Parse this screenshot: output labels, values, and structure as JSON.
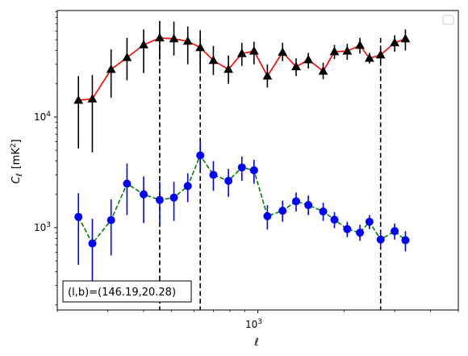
{
  "chart_data": {
    "type": "scatter",
    "xlabel_base": "ℓ",
    "ylabel_base": "C",
    "ylabel_sub": "ℓ",
    "ylabel_unit": "[mK",
    "ylabel_unit_sup": "2",
    "ylabel_unit_end": "]",
    "x_scale": "log",
    "y_scale": "log",
    "xlim": [
      200,
      5000
    ],
    "ylim": [
      180,
      92000
    ],
    "x_major_ticks": [
      {
        "value": 1000,
        "base": "10",
        "exp": "3"
      }
    ],
    "y_major_ticks": [
      {
        "value": 1000,
        "base": "10",
        "exp": "3"
      },
      {
        "value": 10000,
        "base": "10",
        "exp": "4"
      }
    ],
    "legend": "top-right",
    "grid": false,
    "annotation": "(l,b)=(146.19,20.28)",
    "vlines": [
      455,
      630,
      2680
    ],
    "series": [
      {
        "marker": "triangle",
        "marker_color": "#000000",
        "line_color": "#ff0000",
        "line_style": "solid",
        "errorbar_color": "#000000",
        "points": [
          {
            "x": 237,
            "y": 14200,
            "lo": 5200,
            "hi": 23500
          },
          {
            "x": 265,
            "y": 14600,
            "lo": 4800,
            "hi": 24000
          },
          {
            "x": 308,
            "y": 27000,
            "lo": 15000,
            "hi": 41000
          },
          {
            "x": 350,
            "y": 34500,
            "lo": 21500,
            "hi": 52000
          },
          {
            "x": 400,
            "y": 45000,
            "lo": 25000,
            "hi": 62000
          },
          {
            "x": 455,
            "y": 52000,
            "lo": 33000,
            "hi": 74000
          },
          {
            "x": 510,
            "y": 51000,
            "lo": 36000,
            "hi": 73000
          },
          {
            "x": 570,
            "y": 48500,
            "lo": 30000,
            "hi": 66000
          },
          {
            "x": 630,
            "y": 42500,
            "lo": 27000,
            "hi": 61000
          },
          {
            "x": 700,
            "y": 32500,
            "lo": 24000,
            "hi": 44000
          },
          {
            "x": 790,
            "y": 27000,
            "lo": 20000,
            "hi": 36000
          },
          {
            "x": 880,
            "y": 37500,
            "lo": 29000,
            "hi": 47000
          },
          {
            "x": 970,
            "y": 39500,
            "lo": 30000,
            "hi": 48000
          },
          {
            "x": 1080,
            "y": 23500,
            "lo": 18500,
            "hi": 30000
          },
          {
            "x": 1220,
            "y": 38500,
            "lo": 32000,
            "hi": 47000
          },
          {
            "x": 1360,
            "y": 28500,
            "lo": 23500,
            "hi": 34000
          },
          {
            "x": 1500,
            "y": 33000,
            "lo": 27500,
            "hi": 38000
          },
          {
            "x": 1690,
            "y": 26000,
            "lo": 22000,
            "hi": 31000
          },
          {
            "x": 1850,
            "y": 39000,
            "lo": 33500,
            "hi": 45000
          },
          {
            "x": 2050,
            "y": 39500,
            "lo": 33000,
            "hi": 46000
          },
          {
            "x": 2270,
            "y": 44500,
            "lo": 37500,
            "hi": 52000
          },
          {
            "x": 2450,
            "y": 34000,
            "lo": 30500,
            "hi": 38000
          },
          {
            "x": 2680,
            "y": 36500,
            "lo": 30500,
            "hi": 42000
          },
          {
            "x": 3000,
            "y": 47000,
            "lo": 39000,
            "hi": 55000
          },
          {
            "x": 3270,
            "y": 51000,
            "lo": 40000,
            "hi": 62000
          }
        ]
      },
      {
        "marker": "circle",
        "marker_color": "#0000ff",
        "line_color": "#008000",
        "line_style": "dashed",
        "errorbar_color": "#0000ff",
        "points": [
          {
            "x": 237,
            "y": 1250,
            "lo": 460,
            "hi": 2050
          },
          {
            "x": 265,
            "y": 720,
            "lo": 240,
            "hi": 1200
          },
          {
            "x": 308,
            "y": 1170,
            "lo": 560,
            "hi": 1800
          },
          {
            "x": 350,
            "y": 2500,
            "lo": 1300,
            "hi": 3800
          },
          {
            "x": 400,
            "y": 2000,
            "lo": 1100,
            "hi": 2900
          },
          {
            "x": 455,
            "y": 1780,
            "lo": 1050,
            "hi": 2600
          },
          {
            "x": 510,
            "y": 1870,
            "lo": 1150,
            "hi": 2600
          },
          {
            "x": 570,
            "y": 2380,
            "lo": 1700,
            "hi": 3100
          },
          {
            "x": 630,
            "y": 4500,
            "lo": 3300,
            "hi": 6100
          },
          {
            "x": 700,
            "y": 3000,
            "lo": 2150,
            "hi": 4000
          },
          {
            "x": 790,
            "y": 2650,
            "lo": 1900,
            "hi": 3400
          },
          {
            "x": 880,
            "y": 3500,
            "lo": 2650,
            "hi": 4400
          },
          {
            "x": 970,
            "y": 3300,
            "lo": 2500,
            "hi": 4100
          },
          {
            "x": 1080,
            "y": 1270,
            "lo": 960,
            "hi": 1600
          },
          {
            "x": 1220,
            "y": 1420,
            "lo": 1130,
            "hi": 1750
          },
          {
            "x": 1360,
            "y": 1730,
            "lo": 1400,
            "hi": 2080
          },
          {
            "x": 1500,
            "y": 1600,
            "lo": 1300,
            "hi": 1950
          },
          {
            "x": 1690,
            "y": 1400,
            "lo": 1150,
            "hi": 1680
          },
          {
            "x": 1850,
            "y": 1180,
            "lo": 990,
            "hi": 1380
          },
          {
            "x": 2050,
            "y": 970,
            "lo": 820,
            "hi": 1130
          },
          {
            "x": 2270,
            "y": 900,
            "lo": 760,
            "hi": 1060
          },
          {
            "x": 2450,
            "y": 1130,
            "lo": 970,
            "hi": 1300
          },
          {
            "x": 2680,
            "y": 780,
            "lo": 660,
            "hi": 910
          },
          {
            "x": 3000,
            "y": 930,
            "lo": 780,
            "hi": 1090
          },
          {
            "x": 3270,
            "y": 770,
            "lo": 610,
            "hi": 930
          }
        ]
      }
    ]
  }
}
